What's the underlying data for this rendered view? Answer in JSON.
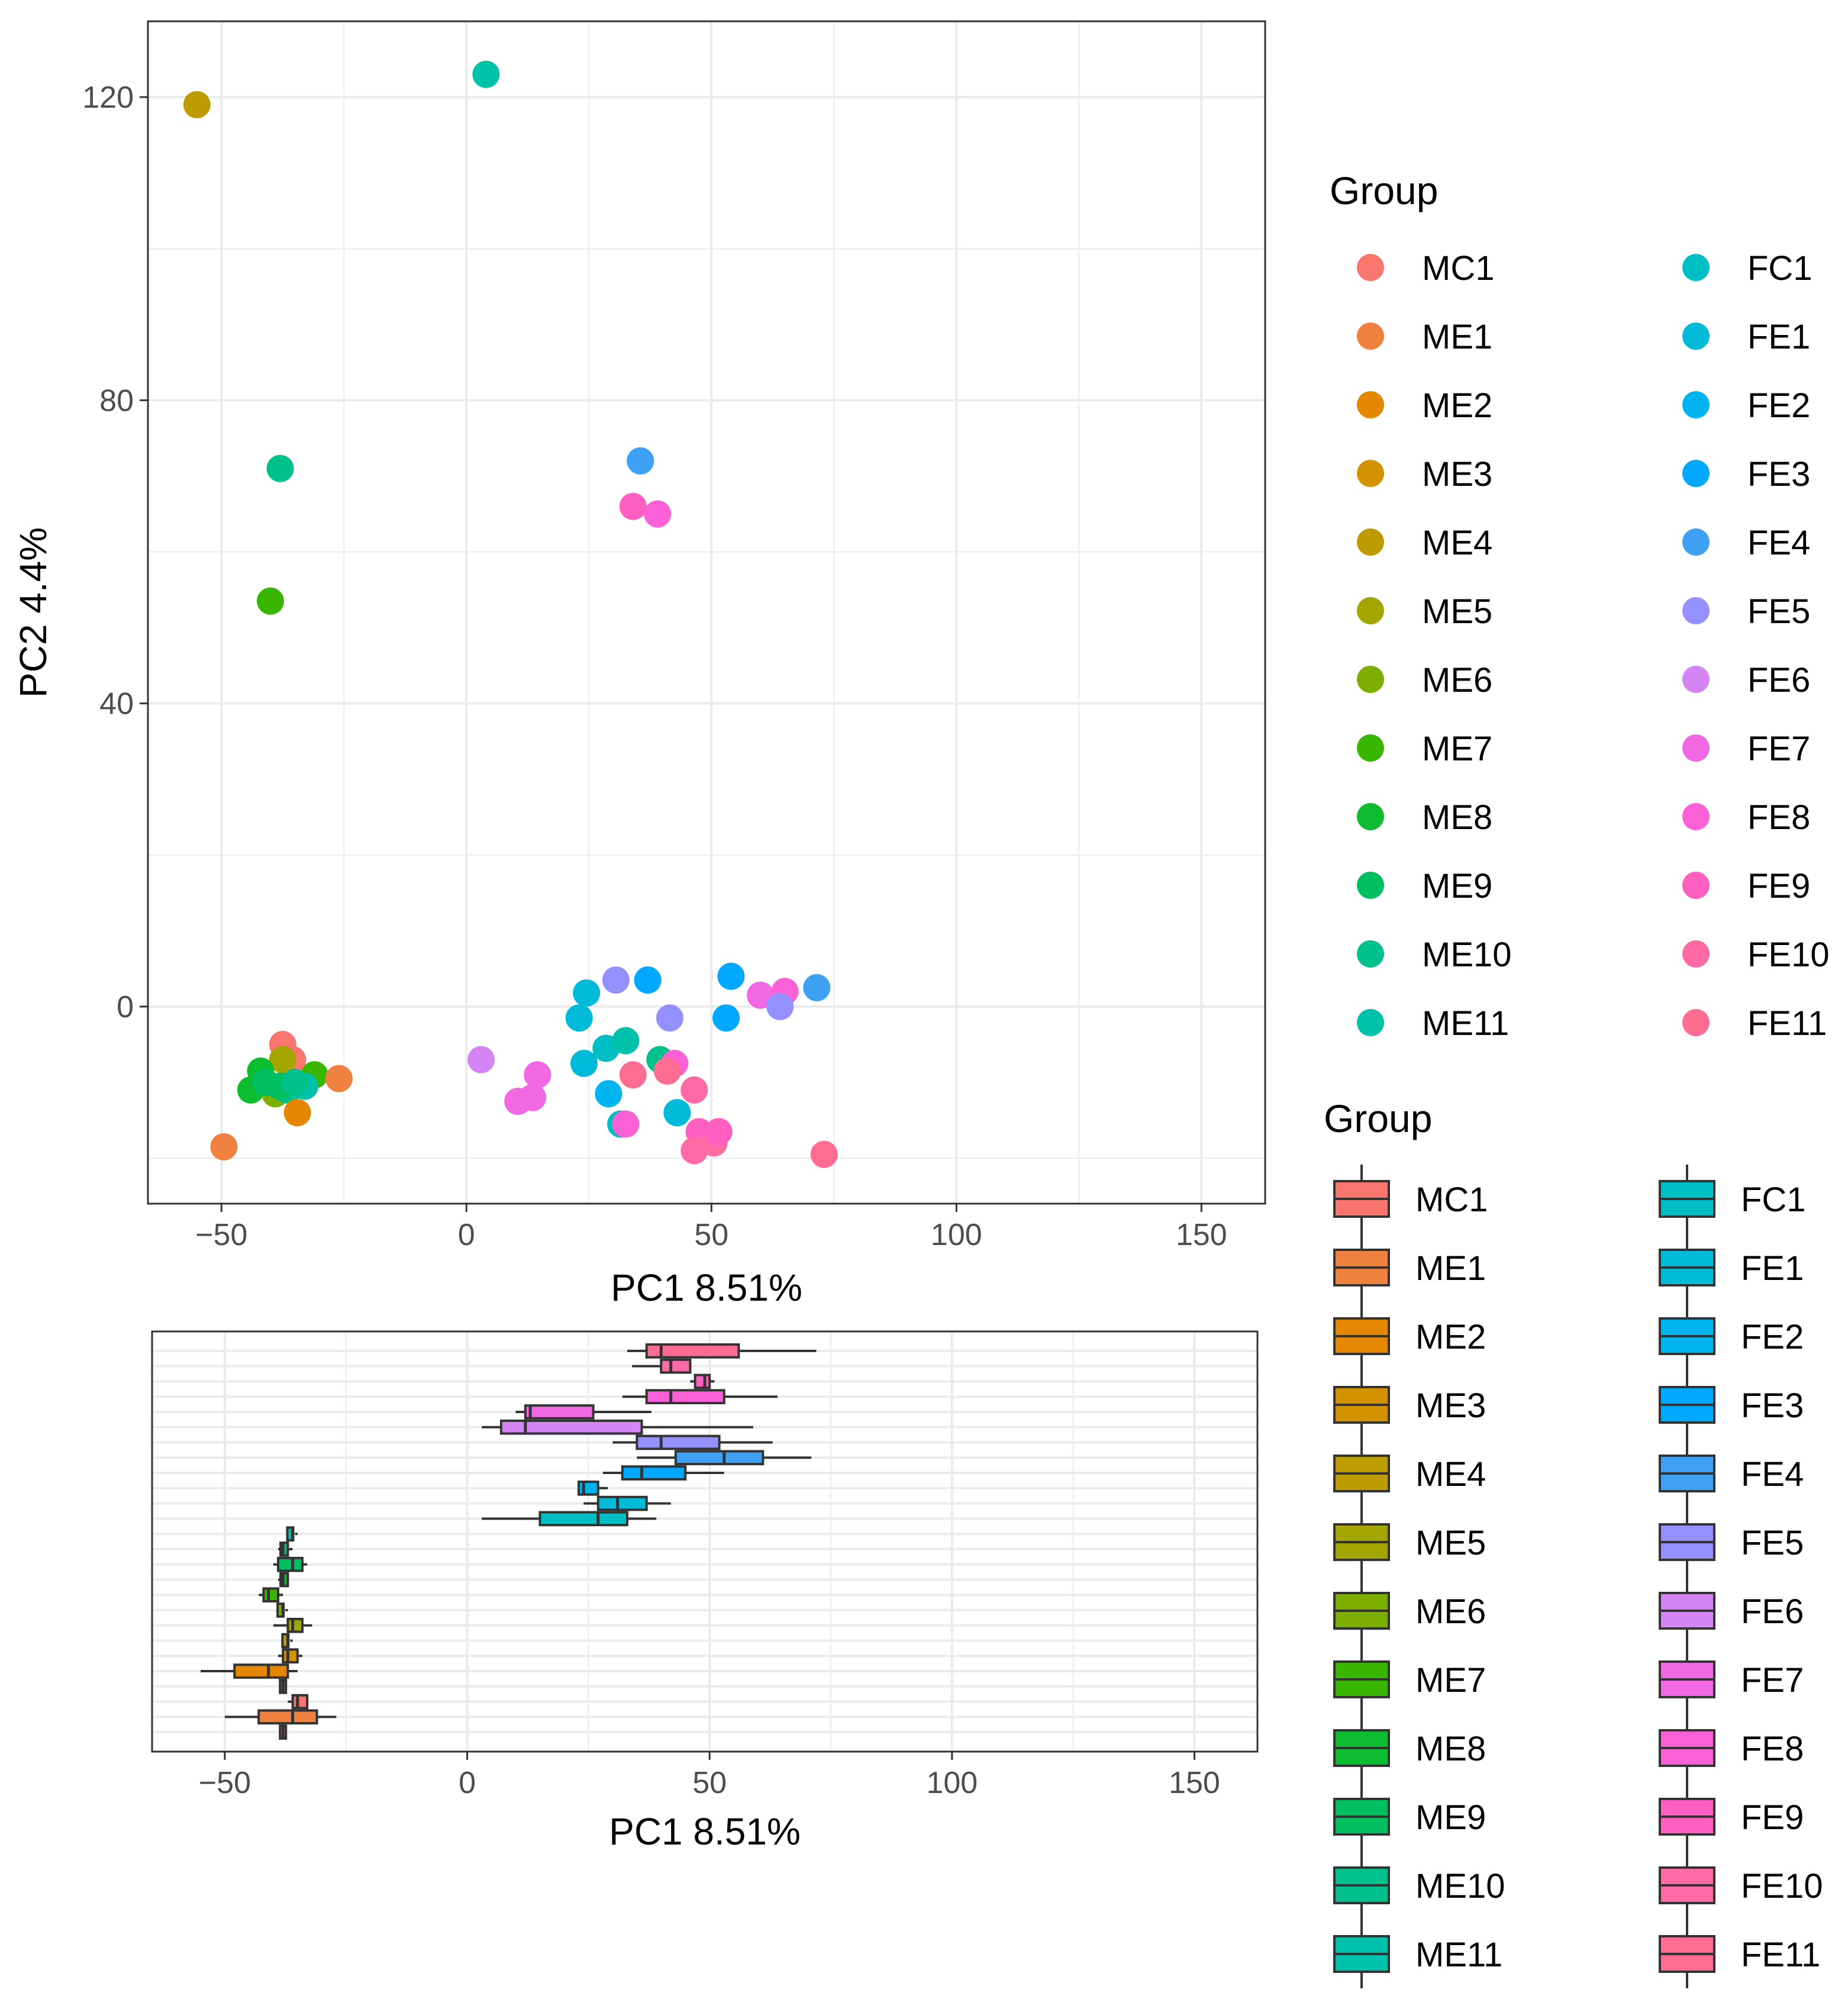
{
  "groups": [
    "MC1",
    "ME1",
    "ME2",
    "ME3",
    "ME4",
    "ME5",
    "ME6",
    "ME7",
    "ME8",
    "ME9",
    "ME10",
    "ME11",
    "FC1",
    "FE1",
    "FE2",
    "FE3",
    "FE4",
    "FE5",
    "FE6",
    "FE7",
    "FE8",
    "FE9",
    "FE10",
    "FE11"
  ],
  "colors": {
    "MC1": "#F8766D",
    "ME1": "#F1813F",
    "ME2": "#E58700",
    "ME3": "#D39200",
    "ME4": "#BC9C00",
    "ME5": "#A3A500",
    "ME6": "#7CAE00",
    "ME7": "#39B600",
    "ME8": "#0DBD2F",
    "ME9": "#00BF61",
    "ME10": "#00C08B",
    "ME11": "#00C1AA",
    "FC1": "#00BFC4",
    "FE1": "#00BAD8",
    "FE2": "#00B4EF",
    "FE3": "#00A9FF",
    "FE4": "#3EA1F3",
    "FE5": "#9590FF",
    "FE6": "#D484F3",
    "FE7": "#F068E2",
    "FE8": "#FB61D7",
    "FE9": "#FF5FC0",
    "FE10": "#FF6AA5",
    "FE11": "#FF6C91"
  },
  "chart_data": [
    {
      "type": "scatter",
      "title": "",
      "xlabel": "PC1 8.51%",
      "ylabel": "PC2 4.4%",
      "xlim": [
        -65,
        163
      ],
      "ylim": [
        -26,
        130
      ],
      "xticks": [
        -50,
        0,
        50,
        100,
        150
      ],
      "yticks": [
        0,
        40,
        80,
        120
      ],
      "grid": true,
      "legend_title": "Group",
      "points": [
        {
          "group": "ME4",
          "x": -55,
          "y": 119
        },
        {
          "group": "ME11",
          "x": 4,
          "y": 123
        },
        {
          "group": "ME10",
          "x": -38,
          "y": 71
        },
        {
          "group": "ME7",
          "x": -40,
          "y": 53.5
        },
        {
          "group": "FE4",
          "x": 35.5,
          "y": 72
        },
        {
          "group": "FE9",
          "x": 34,
          "y": 66
        },
        {
          "group": "FE8",
          "x": 39,
          "y": 65
        },
        {
          "group": "FE1",
          "x": 24.5,
          "y": 1.8
        },
        {
          "group": "FE5",
          "x": 30.5,
          "y": 3.5
        },
        {
          "group": "FE3",
          "x": 37,
          "y": 3.5
        },
        {
          "group": "FE3",
          "x": 54,
          "y": 4
        },
        {
          "group": "FE4",
          "x": 71.5,
          "y": 2.5
        },
        {
          "group": "FE7",
          "x": 60,
          "y": 1.5
        },
        {
          "group": "FE8",
          "x": 65,
          "y": 2
        },
        {
          "group": "FE5",
          "x": 64,
          "y": 0
        },
        {
          "group": "FE1",
          "x": 23,
          "y": -1.5
        },
        {
          "group": "FE5",
          "x": 41.5,
          "y": -1.5
        },
        {
          "group": "FE3",
          "x": 53,
          "y": -1.5
        },
        {
          "group": "FE6",
          "x": 3,
          "y": -7
        },
        {
          "group": "FE1",
          "x": 24,
          "y": -7.5
        },
        {
          "group": "FC1",
          "x": 28.5,
          "y": -5.5
        },
        {
          "group": "ME11",
          "x": 32.5,
          "y": -4.5
        },
        {
          "group": "ME10",
          "x": 39.5,
          "y": -7
        },
        {
          "group": "FE8",
          "x": 42.5,
          "y": -7.5
        },
        {
          "group": "FE7",
          "x": 14.5,
          "y": -9
        },
        {
          "group": "FE11",
          "x": 34,
          "y": -9
        },
        {
          "group": "FE11",
          "x": 41,
          "y": -8.5
        },
        {
          "group": "FE7",
          "x": 10.5,
          "y": -12.5
        },
        {
          "group": "FE7",
          "x": 13.5,
          "y": -12
        },
        {
          "group": "FE2",
          "x": 29,
          "y": -11.5
        },
        {
          "group": "FE10",
          "x": 46.5,
          "y": -11
        },
        {
          "group": "FE1",
          "x": 43,
          "y": -14
        },
        {
          "group": "FC1",
          "x": 31.5,
          "y": -15.5
        },
        {
          "group": "FE8",
          "x": 32.5,
          "y": -15.5
        },
        {
          "group": "FE9",
          "x": 47.5,
          "y": -16.5
        },
        {
          "group": "FE10",
          "x": 50.5,
          "y": -18
        },
        {
          "group": "FE9",
          "x": 51.5,
          "y": -16.5
        },
        {
          "group": "FE10",
          "x": 46.5,
          "y": -19
        },
        {
          "group": "FE11",
          "x": 73,
          "y": -19.5
        },
        {
          "group": "MC1",
          "x": -37.5,
          "y": -5
        },
        {
          "group": "MC1",
          "x": -35.5,
          "y": -7
        },
        {
          "group": "ME5",
          "x": -37.5,
          "y": -7
        },
        {
          "group": "ME8",
          "x": -42,
          "y": -8.5
        },
        {
          "group": "ME7",
          "x": -31,
          "y": -9
        },
        {
          "group": "ME1",
          "x": -26,
          "y": -9.5
        },
        {
          "group": "ME8",
          "x": -44,
          "y": -11
        },
        {
          "group": "ME6",
          "x": -39,
          "y": -11.5
        },
        {
          "group": "ME9",
          "x": -41,
          "y": -10
        },
        {
          "group": "ME10",
          "x": -36.5,
          "y": -11
        },
        {
          "group": "ME11",
          "x": -33,
          "y": -10.5
        },
        {
          "group": "ME9",
          "x": -38,
          "y": -10.5
        },
        {
          "group": "ME10",
          "x": -35,
          "y": -10
        },
        {
          "group": "ME2",
          "x": -34.5,
          "y": -14
        },
        {
          "group": "ME1",
          "x": -49.5,
          "y": -18.5
        }
      ]
    },
    {
      "type": "box",
      "title": "",
      "xlabel": "PC1 8.51%",
      "xlim": [
        -65,
        163
      ],
      "xticks": [
        -50,
        0,
        50,
        100,
        150
      ],
      "grid": true,
      "legend_title": "Group",
      "orientation": "horizontal",
      "boxes": [
        {
          "group": "FE11",
          "min": 33,
          "q1": 37,
          "median": 40,
          "q3": 56,
          "max": 72
        },
        {
          "group": "FE10",
          "min": 34,
          "q1": 40,
          "median": 42,
          "q3": 46,
          "max": 46
        },
        {
          "group": "FE9",
          "min": 46,
          "q1": 47,
          "median": 49,
          "q3": 50,
          "max": 51
        },
        {
          "group": "FE8",
          "min": 32,
          "q1": 37,
          "median": 42,
          "q3": 53,
          "max": 64
        },
        {
          "group": "FE7",
          "min": 10,
          "q1": 12,
          "median": 13,
          "q3": 26,
          "max": 38
        },
        {
          "group": "FE6",
          "min": 3,
          "q1": 7,
          "median": 12,
          "q3": 36,
          "max": 59
        },
        {
          "group": "FE5",
          "min": 30,
          "q1": 35,
          "median": 40,
          "q3": 52,
          "max": 63
        },
        {
          "group": "FE4",
          "min": 35,
          "q1": 43,
          "median": 53,
          "q3": 61,
          "max": 71
        },
        {
          "group": "FE3",
          "min": 28,
          "q1": 32,
          "median": 36,
          "q3": 45,
          "max": 53
        },
        {
          "group": "FE2",
          "min": 23,
          "q1": 23,
          "median": 24,
          "q3": 27,
          "max": 29
        },
        {
          "group": "FE1",
          "min": 24,
          "q1": 27,
          "median": 31,
          "q3": 37,
          "max": 42
        },
        {
          "group": "FC1",
          "min": 3,
          "q1": 15,
          "median": 27,
          "q3": 33,
          "max": 39
        },
        {
          "group": "ME11",
          "min": -37,
          "q1": -36.5,
          "median": -36,
          "q3": -35.5,
          "max": -35
        },
        {
          "group": "ME10",
          "min": -39,
          "q1": -38.5,
          "median": -38,
          "q3": -37,
          "max": -36
        },
        {
          "group": "ME9",
          "min": -40,
          "q1": -39,
          "median": -36,
          "q3": -34,
          "max": -33
        },
        {
          "group": "ME8",
          "min": -39,
          "q1": -38.5,
          "median": -38,
          "q3": -37,
          "max": -37
        },
        {
          "group": "ME7",
          "min": -43,
          "q1": -42,
          "median": -41,
          "q3": -39,
          "max": -38
        },
        {
          "group": "ME6",
          "min": -39,
          "q1": -38.5,
          "median": -38,
          "q3": -37.5,
          "max": -37
        },
        {
          "group": "ME5",
          "min": -40,
          "q1": -37,
          "median": -36,
          "q3": -34,
          "max": -32
        },
        {
          "group": "ME4",
          "min": -38,
          "q1": -37.5,
          "median": -37,
          "q3": -36.5,
          "max": -36
        },
        {
          "group": "ME3",
          "min": -39,
          "q1": -38,
          "median": -37,
          "q3": -35,
          "max": -34
        },
        {
          "group": "ME2",
          "min": -55,
          "q1": -48,
          "median": -41,
          "q3": -37,
          "max": -35
        },
        {
          "group": "ME1",
          "min": -38,
          "q1": -38,
          "median": -38,
          "q3": -38,
          "max": -38
        },
        {
          "group": "MC1",
          "min": -37,
          "q1": -36,
          "median": -35,
          "q3": -33,
          "max": -33
        },
        {
          "group": "ME1",
          "min": -50,
          "q1": -43,
          "median": -36,
          "q3": -31,
          "max": -27
        },
        {
          "group": "MC1",
          "min": -38,
          "q1": -38,
          "median": -38,
          "q3": -38,
          "max": -38
        }
      ]
    }
  ]
}
